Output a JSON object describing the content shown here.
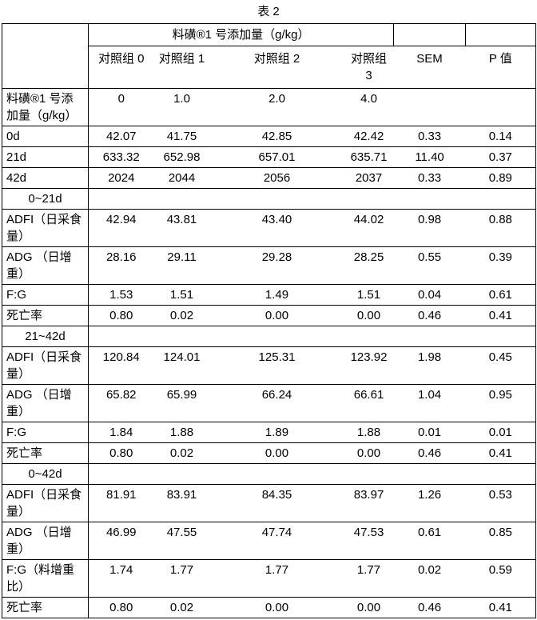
{
  "page": {
    "title": "表 2"
  },
  "table": {
    "header": {
      "span_label": "料磺®1 号添加量（g/kg）",
      "col_labels": [
        "对照组 0",
        "对照组 1",
        "对照组 2",
        "对照组 3",
        "SEM",
        "P 值"
      ]
    },
    "rows": [
      {
        "label": "料磺®1 号添加量（g/kg）",
        "section": false,
        "values": [
          "0",
          "1.0",
          "2.0",
          "4.0",
          "",
          ""
        ]
      },
      {
        "label": "0d",
        "section": false,
        "values": [
          "42.07",
          "41.75",
          "42.85",
          "42.42",
          "0.33",
          "0.14"
        ]
      },
      {
        "label": "21d",
        "section": false,
        "values": [
          "633.32",
          "652.98",
          "657.01",
          "635.71",
          "11.40",
          "0.37"
        ]
      },
      {
        "label": "42d",
        "section": false,
        "values": [
          "2024",
          "2044",
          "2056",
          "2037",
          "0.33",
          "0.89"
        ]
      },
      {
        "label": "0~21d",
        "section": true,
        "values": [
          "",
          "",
          "",
          "",
          "",
          ""
        ]
      },
      {
        "label": "ADFI（日采食量）",
        "section": false,
        "values": [
          "42.94",
          "43.81",
          "43.40",
          "44.02",
          "0.98",
          "0.88"
        ]
      },
      {
        "label": "ADG （日增重）",
        "section": false,
        "values": [
          "28.16",
          "29.11",
          "29.28",
          "28.25",
          "0.55",
          "0.39"
        ]
      },
      {
        "label": "F:G",
        "section": false,
        "values": [
          "1.53",
          "1.51",
          "1.49",
          "1.51",
          "0.04",
          "0.61"
        ]
      },
      {
        "label": "死亡率",
        "section": false,
        "values": [
          "0.80",
          "0.02",
          "0.00",
          "0.00",
          "0.46",
          "0.41"
        ]
      },
      {
        "label": "21~42d",
        "section": true,
        "values": [
          "",
          "",
          "",
          "",
          "",
          ""
        ]
      },
      {
        "label": "ADFI（日采食量）",
        "section": false,
        "values": [
          "120.84",
          "124.01",
          "125.31",
          "123.92",
          "1.98",
          "0.45"
        ]
      },
      {
        "label": "ADG （日增重）",
        "section": false,
        "values": [
          "65.82",
          "65.99",
          "66.24",
          "66.61",
          "1.04",
          "0.95"
        ]
      },
      {
        "label": "F:G",
        "section": false,
        "values": [
          "1.84",
          "1.88",
          "1.89",
          "1.88",
          "0.01",
          "0.01"
        ]
      },
      {
        "label": "死亡率",
        "section": false,
        "values": [
          "0.80",
          "0.02",
          "0.00",
          "0.00",
          "0.46",
          "0.41"
        ]
      },
      {
        "label": "0~42d",
        "section": true,
        "values": [
          "",
          "",
          "",
          "",
          "",
          ""
        ]
      },
      {
        "label": "ADFI（日采食量）",
        "section": false,
        "values": [
          "81.91",
          "83.91",
          "84.35",
          "83.97",
          "1.26",
          "0.53"
        ]
      },
      {
        "label": "ADG （日增重）",
        "section": false,
        "values": [
          "46.99",
          "47.55",
          "47.74",
          "47.53",
          "0.61",
          "0.85"
        ]
      },
      {
        "label": "F:G（料增重比）",
        "section": false,
        "values": [
          "1.74",
          "1.77",
          "1.77",
          "1.77",
          "0.02",
          "0.59"
        ]
      },
      {
        "label": "死亡率",
        "section": false,
        "values": [
          "0.80",
          "0.02",
          "0.00",
          "0.00",
          "0.46",
          "0.41"
        ]
      }
    ]
  }
}
